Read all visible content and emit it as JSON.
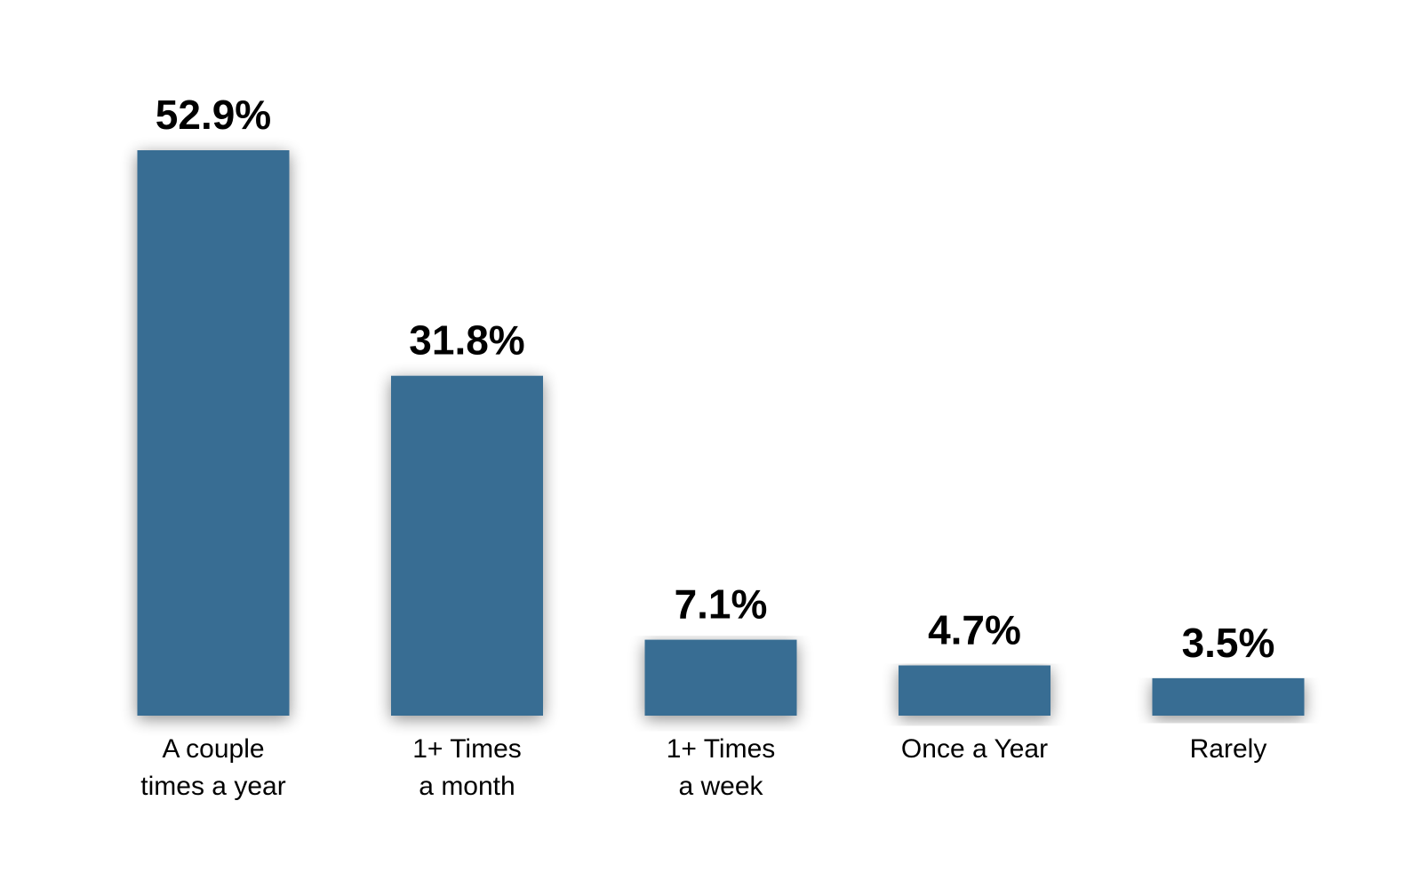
{
  "chart_data": {
    "type": "bar",
    "categories": [
      [
        "A couple",
        "times a year"
      ],
      [
        "1+ Times",
        "a month"
      ],
      [
        "1+ Times",
        "a week"
      ],
      [
        "Once a Year"
      ],
      [
        "Rarely"
      ]
    ],
    "values": [
      52.9,
      31.8,
      7.1,
      4.7,
      3.5
    ],
    "value_labels": [
      "52.9%",
      "31.8%",
      "7.1%",
      "4.7%",
      "3.5%"
    ],
    "title": "",
    "xlabel": "",
    "ylabel": "",
    "ylim": [
      0,
      52.9
    ],
    "grid": false,
    "legend": "none",
    "bar_color": "#376D93"
  }
}
